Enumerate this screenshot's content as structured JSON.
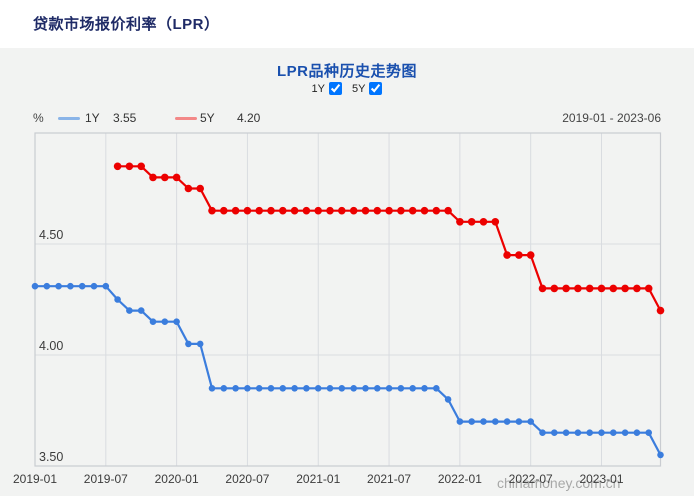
{
  "page": {
    "title": "贷款市场报价利率（LPR）"
  },
  "chart": {
    "title": "LPR品种历史走势图",
    "checkboxes": [
      {
        "label": "1Y",
        "checked": true
      },
      {
        "label": "5Y",
        "checked": true
      }
    ],
    "unit_label": "%",
    "legend": [
      {
        "name": "1Y",
        "value": "3.55",
        "swatch_color": "#8ab4e8"
      },
      {
        "name": "5Y",
        "value": "4.20",
        "swatch_color": "#f38888"
      }
    ],
    "date_range": "2019-01 - 2023-06",
    "watermark": "chinamoney.com.cn",
    "colors": {
      "line_1y": "#3b7ddd",
      "line_5y": "#ec0000",
      "grid": "#d9dce0",
      "plot_border": "#c9ccd1",
      "axis_text": "#3c3c3c",
      "panel_bg": "#f2f3f2"
    }
  },
  "chart_data": {
    "type": "line",
    "title": "LPR品种历史走势图",
    "ylabel": "%",
    "ylim": [
      3.5,
      5.0
    ],
    "yticks": [
      3.5,
      4.0,
      4.5
    ],
    "grid": true,
    "legend_position": "top-left",
    "x": [
      "2019-01",
      "2019-02",
      "2019-03",
      "2019-04",
      "2019-05",
      "2019-06",
      "2019-07",
      "2019-08",
      "2019-09",
      "2019-10",
      "2019-11",
      "2019-12",
      "2020-01",
      "2020-02",
      "2020-03",
      "2020-04",
      "2020-05",
      "2020-06",
      "2020-07",
      "2020-08",
      "2020-09",
      "2020-10",
      "2020-11",
      "2020-12",
      "2021-01",
      "2021-02",
      "2021-03",
      "2021-04",
      "2021-05",
      "2021-06",
      "2021-07",
      "2021-08",
      "2021-09",
      "2021-10",
      "2021-11",
      "2021-12",
      "2022-01",
      "2022-02",
      "2022-03",
      "2022-04",
      "2022-05",
      "2022-06",
      "2022-07",
      "2022-08",
      "2022-09",
      "2022-10",
      "2022-11",
      "2022-12",
      "2023-01",
      "2023-02",
      "2023-03",
      "2023-04",
      "2023-05",
      "2023-06"
    ],
    "xticks": [
      "2019-01",
      "2019-07",
      "2020-01",
      "2020-07",
      "2021-01",
      "2021-07",
      "2022-01",
      "2022-07",
      "2023-01"
    ],
    "series": [
      {
        "name": "1Y",
        "color": "#3b7ddd",
        "values": [
          4.31,
          4.31,
          4.31,
          4.31,
          4.31,
          4.31,
          4.31,
          4.25,
          4.2,
          4.2,
          4.15,
          4.15,
          4.15,
          4.05,
          4.05,
          3.85,
          3.85,
          3.85,
          3.85,
          3.85,
          3.85,
          3.85,
          3.85,
          3.85,
          3.85,
          3.85,
          3.85,
          3.85,
          3.85,
          3.85,
          3.85,
          3.85,
          3.85,
          3.85,
          3.85,
          3.8,
          3.7,
          3.7,
          3.7,
          3.7,
          3.7,
          3.7,
          3.7,
          3.65,
          3.65,
          3.65,
          3.65,
          3.65,
          3.65,
          3.65,
          3.65,
          3.65,
          3.65,
          3.55
        ]
      },
      {
        "name": "5Y",
        "color": "#ec0000",
        "values": [
          null,
          null,
          null,
          null,
          null,
          null,
          null,
          4.85,
          4.85,
          4.85,
          4.8,
          4.8,
          4.8,
          4.75,
          4.75,
          4.65,
          4.65,
          4.65,
          4.65,
          4.65,
          4.65,
          4.65,
          4.65,
          4.65,
          4.65,
          4.65,
          4.65,
          4.65,
          4.65,
          4.65,
          4.65,
          4.65,
          4.65,
          4.65,
          4.65,
          4.65,
          4.6,
          4.6,
          4.6,
          4.6,
          4.45,
          4.45,
          4.45,
          4.3,
          4.3,
          4.3,
          4.3,
          4.3,
          4.3,
          4.3,
          4.3,
          4.3,
          4.3,
          4.2
        ]
      }
    ]
  }
}
